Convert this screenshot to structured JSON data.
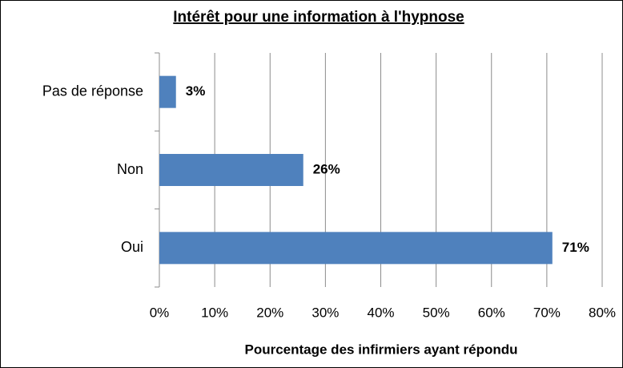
{
  "chart_data": {
    "type": "bar",
    "orientation": "horizontal",
    "title": "Intérêt pour une information à l'hypnose",
    "x_label": "Pourcentage des infirmiers ayant répondu",
    "categories": [
      "Pas de réponse",
      "Non",
      "Oui"
    ],
    "values": [
      3,
      26,
      71
    ],
    "value_labels": [
      "3%",
      "26%",
      "71%"
    ],
    "color": "#4f81bd",
    "xlim": [
      0,
      80
    ],
    "xticks": [
      {
        "value": 0,
        "label": "0%"
      },
      {
        "value": 10,
        "label": "10%"
      },
      {
        "value": 20,
        "label": "20%"
      },
      {
        "value": 30,
        "label": "30%"
      },
      {
        "value": 40,
        "label": "40%"
      },
      {
        "value": 50,
        "label": "50%"
      },
      {
        "value": 60,
        "label": "60%"
      },
      {
        "value": 70,
        "label": "70%"
      },
      {
        "value": 80,
        "label": "80%"
      }
    ],
    "grid": true
  }
}
